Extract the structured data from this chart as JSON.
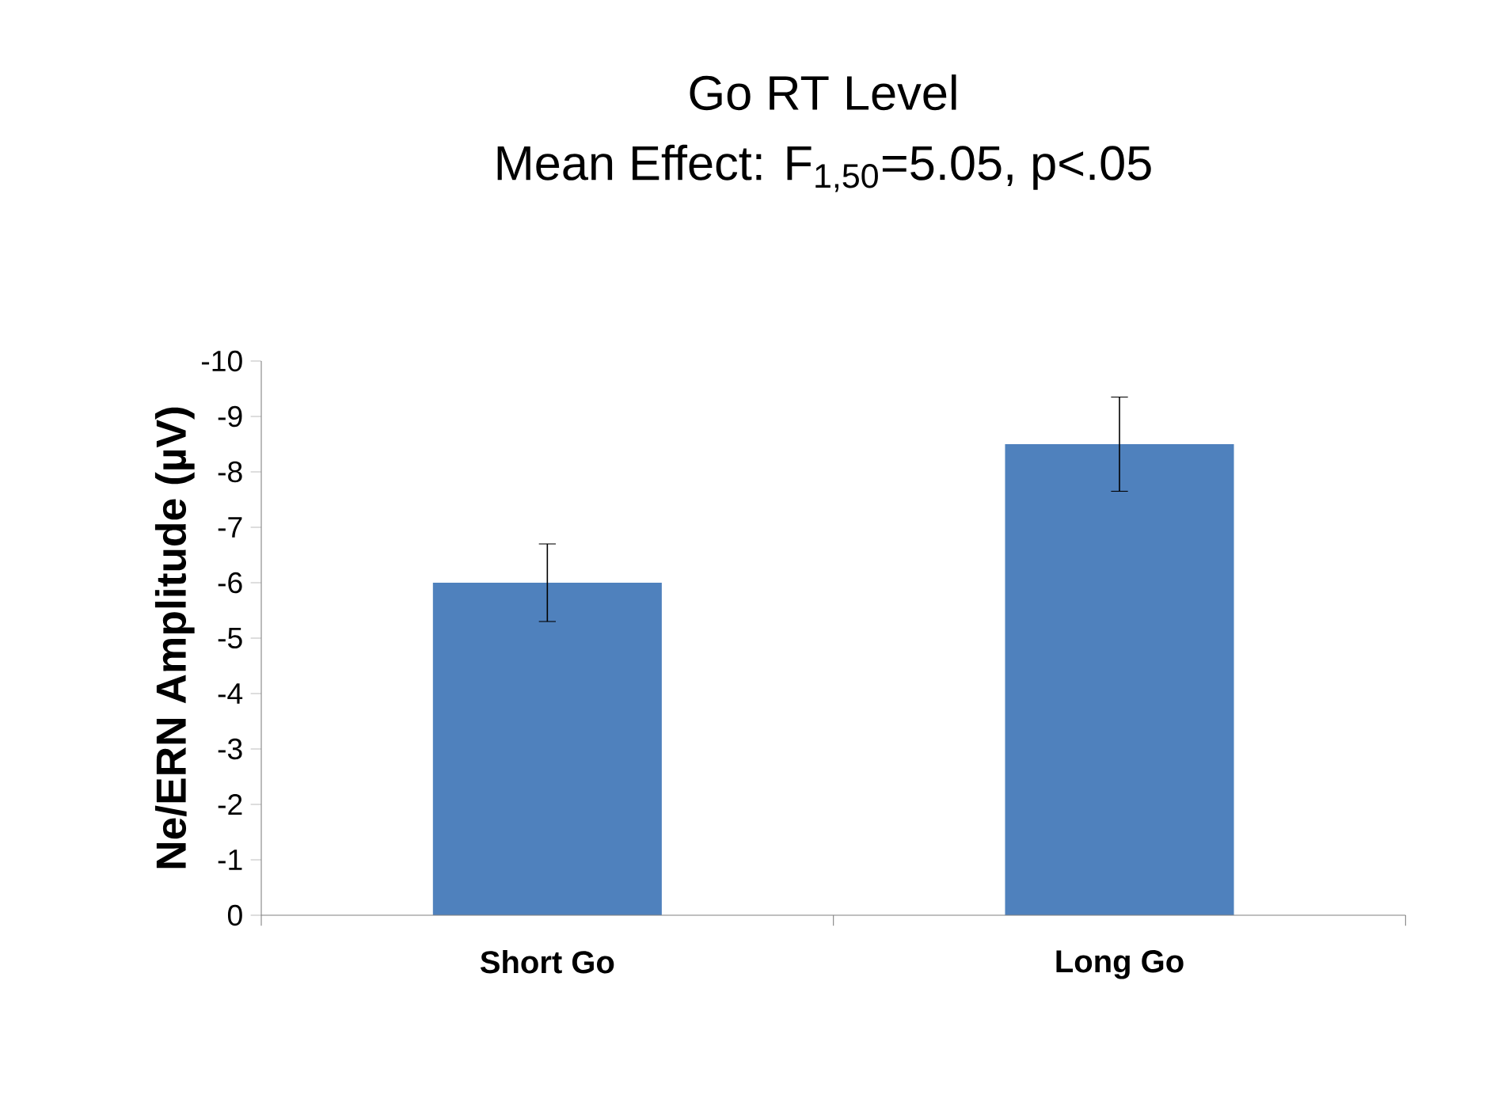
{
  "chart_data": {
    "type": "bar",
    "title": "Go RT Level",
    "subtitle": "Mean Effect: F$_{1,50}$=5.05, p<.05",
    "ylabel": "Ne/ERN Amplitude (µV)",
    "categories": [
      "Short Go",
      "Long Go"
    ],
    "values": [
      -6.0,
      -8.5
    ],
    "errors": [
      0.7,
      0.85
    ],
    "color": "#4f81bd",
    "ylim": [
      0,
      -10
    ],
    "yticks": [
      -10,
      -9,
      -8,
      -7,
      -6,
      -5,
      -4,
      -3,
      -2,
      -1,
      0
    ]
  }
}
